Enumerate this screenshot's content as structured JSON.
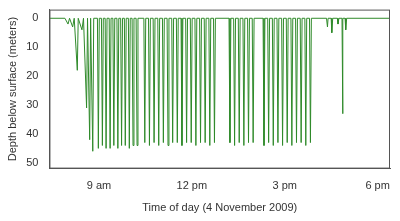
{
  "chart_data": {
    "type": "line",
    "x_label": "Time of day (4 November 2009)",
    "y_label": "Depth below surface (meters)",
    "xlim": [
      7.4,
      18.4
    ],
    "xticks": [
      {
        "value": 9,
        "label": "9 am"
      },
      {
        "value": 12,
        "label": "12 pm"
      },
      {
        "value": 15,
        "label": "3 pm"
      },
      {
        "value": 18,
        "label": "6 pm"
      }
    ],
    "ylim": [
      52,
      -3
    ],
    "yticks": [
      0,
      10,
      20,
      30,
      40,
      50
    ],
    "grid": false,
    "color": "#2f8a2a",
    "x": [
      7.4,
      7.9,
      8.0,
      8.05,
      8.15,
      8.2,
      8.3,
      8.33,
      8.45,
      8.5,
      8.6,
      8.63,
      8.7,
      8.73,
      8.8,
      8.83,
      8.95,
      8.98,
      9.01,
      9.08,
      9.11,
      9.14,
      9.2,
      9.23,
      9.26,
      9.33,
      9.36,
      9.39,
      9.45,
      9.48,
      9.51,
      9.58,
      9.61,
      9.64,
      9.7,
      9.73,
      9.76,
      9.82,
      9.85,
      9.88,
      9.95,
      9.98,
      10.01,
      10.07,
      10.1,
      10.13,
      10.2,
      10.23,
      10.26,
      10.45,
      10.48,
      10.51,
      10.6,
      10.63,
      10.66,
      10.75,
      10.78,
      10.81,
      10.9,
      10.93,
      10.96,
      11.05,
      11.08,
      11.11,
      11.2,
      11.23,
      11.26,
      11.35,
      11.38,
      11.41,
      11.5,
      11.53,
      11.56,
      11.65,
      11.68,
      11.71,
      11.8,
      11.83,
      11.86,
      11.95,
      11.98,
      12.01,
      12.1,
      12.13,
      12.16,
      12.25,
      12.28,
      12.31,
      12.4,
      12.43,
      12.46,
      12.55,
      12.58,
      12.61,
      12.7,
      12.73,
      12.76,
      13.2,
      13.23,
      13.26,
      13.35,
      13.38,
      13.41,
      13.5,
      13.53,
      13.56,
      13.65,
      13.68,
      13.71,
      13.8,
      13.83,
      13.86,
      13.95,
      13.98,
      14.01,
      14.3,
      14.33,
      14.36,
      14.45,
      14.48,
      14.51,
      14.6,
      14.63,
      14.66,
      14.75,
      14.78,
      14.81,
      14.9,
      14.93,
      14.96,
      15.05,
      15.08,
      15.11,
      15.2,
      15.23,
      15.26,
      15.35,
      15.38,
      15.41,
      15.5,
      15.53,
      15.56,
      15.65,
      15.68,
      15.71,
      15.8,
      15.83,
      15.86,
      16.35,
      16.38,
      16.4,
      16.5,
      16.52,
      16.55,
      16.7,
      16.72,
      16.75,
      16.85,
      16.87,
      16.88,
      16.95,
      16.97,
      17.0,
      18.4
    ],
    "values": [
      0,
      0,
      2,
      0,
      3,
      0,
      18,
      0,
      4,
      0,
      31,
      0,
      42,
      0,
      46,
      0,
      0,
      45,
      0,
      0,
      44,
      0,
      0,
      45,
      0,
      0,
      45,
      0,
      0,
      44,
      0,
      0,
      45,
      0,
      0,
      44,
      0,
      0,
      44,
      0,
      0,
      45,
      0,
      0,
      44,
      0,
      0,
      44,
      0,
      0,
      43,
      0,
      0,
      44,
      0,
      0,
      43,
      0,
      0,
      44,
      0,
      0,
      43,
      0,
      0,
      44,
      0,
      0,
      43,
      0,
      0,
      43,
      0,
      0,
      44,
      0,
      0,
      43,
      0,
      0,
      43,
      0,
      0,
      44,
      0,
      0,
      43,
      0,
      0,
      43,
      0,
      0,
      44,
      0,
      0,
      43,
      0,
      0,
      43,
      0,
      0,
      44,
      0,
      0,
      43,
      0,
      0,
      44,
      0,
      0,
      43,
      0,
      0,
      43,
      0,
      0,
      44,
      0,
      0,
      43,
      0,
      0,
      44,
      0,
      0,
      43,
      0,
      0,
      44,
      0,
      0,
      43,
      0,
      0,
      44,
      0,
      0,
      43,
      0,
      0,
      43,
      0,
      0,
      44,
      0,
      0,
      43,
      0,
      0,
      3,
      0,
      0,
      5,
      0,
      0,
      2,
      0,
      0,
      33,
      0,
      0,
      4,
      0,
      0
    ]
  }
}
